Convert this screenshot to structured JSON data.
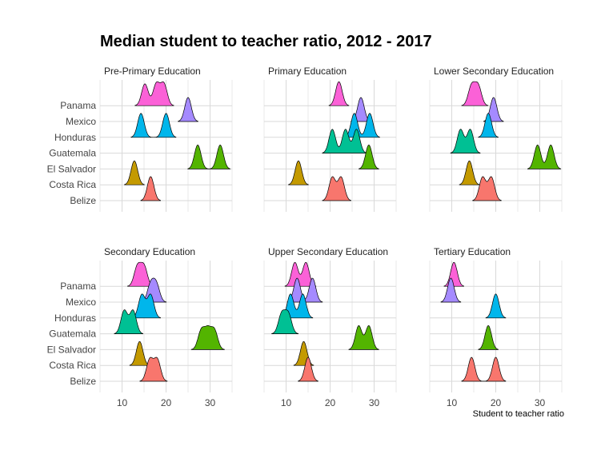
{
  "chart_data": {
    "type": "ridgeline",
    "title": "Median student to teacher ratio, 2012 - 2017",
    "xlabel": "Student to teacher ratio",
    "ylabel": "",
    "countries": [
      "Belize",
      "Costa Rica",
      "El Salvador",
      "Guatemala",
      "Honduras",
      "Mexico",
      "Panama"
    ],
    "x_ticks": [
      10,
      20,
      30
    ],
    "xlim": [
      5,
      35
    ],
    "grid": true,
    "legend": "none",
    "colors": {
      "Belize": "#F8766D",
      "Costa Rica": "#C49A00",
      "El Salvador": "#53B400",
      "Guatemala": "#00C094",
      "Honduras": "#00B6EB",
      "Mexico": "#A58AFF",
      "Panama": "#FB61D7"
    },
    "panels": [
      {
        "title": "Pre-Primary Education",
        "values": {
          "Belize": [
            16.5
          ],
          "Costa Rica": [
            12.8
          ],
          "El Salvador": [
            27.2,
            32.3
          ],
          "Guatemala": [],
          "Honduras": [
            14.3,
            20.0
          ],
          "Mexico": [
            25.0
          ],
          "Panama": [
            15.2,
            17.8,
            19.5
          ]
        }
      },
      {
        "title": "Primary Education",
        "values": {
          "Belize": [
            20.5,
            22.5
          ],
          "Costa Rica": [
            12.8
          ],
          "El Salvador": [
            28.8
          ],
          "Guatemala": [
            20.5,
            23.5,
            26.0
          ],
          "Honduras": [
            25.5,
            29.0
          ],
          "Mexico": [
            27.0
          ],
          "Panama": [
            22.0
          ]
        }
      },
      {
        "title": "Lower Secondary Education",
        "values": {
          "Belize": [
            17.0,
            19.0
          ],
          "Costa Rica": [
            14.0
          ],
          "El Salvador": [
            29.5,
            32.5
          ],
          "Guatemala": [
            12.0,
            14.2
          ],
          "Honduras": [
            18.3
          ],
          "Mexico": [
            19.5
          ],
          "Panama": [
            14.5,
            16.0
          ]
        }
      },
      {
        "title": "Secondary Education",
        "values": {
          "Belize": [
            16.3,
            18.0
          ],
          "Costa Rica": [
            14.0
          ],
          "El Salvador": [
            28.0,
            29.5,
            31.0
          ],
          "Guatemala": [
            10.5,
            12.5
          ],
          "Honduras": [
            14.5,
            16.5
          ],
          "Mexico": [
            16.5,
            17.8
          ],
          "Panama": [
            13.5,
            15.0
          ]
        }
      },
      {
        "title": "Upper Secondary Education",
        "values": {
          "Belize": [
            15.0
          ],
          "Costa Rica": [
            14.0
          ],
          "El Salvador": [
            26.5,
            28.8
          ],
          "Guatemala": [
            9.0,
            10.5
          ],
          "Honduras": [
            11.0,
            13.8
          ],
          "Mexico": [
            12.5,
            16.0
          ],
          "Panama": [
            12.0,
            14.5
          ]
        }
      },
      {
        "title": "Tertiary Education",
        "values": {
          "Belize": [
            14.5,
            20.0
          ],
          "Costa Rica": [],
          "El Salvador": [
            18.3
          ],
          "Guatemala": [],
          "Honduras": [
            20.0
          ],
          "Mexico": [
            9.8
          ],
          "Panama": [
            10.5
          ]
        }
      }
    ]
  }
}
